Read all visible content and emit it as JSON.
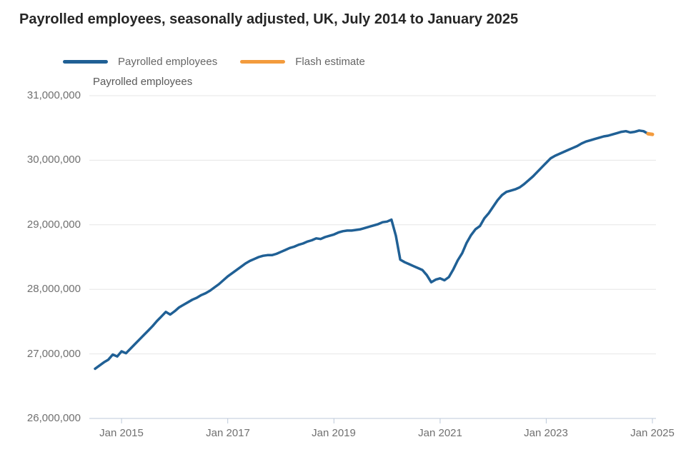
{
  "title": "Payrolled employees, seasonally adjusted, UK, July 2014 to January 2025",
  "legend": [
    {
      "label": "Payrolled employees",
      "color": "#206095"
    },
    {
      "label": "Flash estimate",
      "color": "#f39b3d"
    }
  ],
  "chart_data": {
    "type": "line",
    "title": "Payrolled employees, seasonally adjusted, UK, July 2014 to January 2025",
    "ylabel": "Payrolled employees",
    "xlabel": "",
    "ylim": [
      26000000,
      31000000
    ],
    "grid": "horizontal",
    "legend_position": "top",
    "grid_color": "#e6e6e6",
    "axis_line_color": "#bcc9d9",
    "y_ticks": [
      31000000,
      30000000,
      29000000,
      28000000,
      27000000,
      26000000
    ],
    "y_tick_labels": [
      "31,000,000",
      "30,000,000",
      "29,000,000",
      "28,000,000",
      "27,000,000",
      "26,000,000"
    ],
    "x_tick_labels": [
      "Jan 2015",
      "Jan 2017",
      "Jan 2019",
      "Jan 2021",
      "Jan 2023",
      "Jan 2025"
    ],
    "x_tick_indices": [
      6,
      30,
      54,
      78,
      102,
      126
    ],
    "x_start": "Jul 2014",
    "x_end": "Jan 2025",
    "series": [
      {
        "name": "Payrolled employees",
        "color": "#206095",
        "width": 3.5,
        "start_index": 0,
        "start": "Jul 2014",
        "values": [
          26770000,
          26820000,
          26870000,
          26910000,
          26990000,
          26960000,
          27040000,
          27010000,
          27080000,
          27150000,
          27220000,
          27290000,
          27360000,
          27430000,
          27510000,
          27580000,
          27650000,
          27610000,
          27660000,
          27720000,
          27760000,
          27800000,
          27840000,
          27870000,
          27910000,
          27940000,
          27980000,
          28030000,
          28080000,
          28140000,
          28200000,
          28250000,
          28300000,
          28350000,
          28400000,
          28440000,
          28470000,
          28500000,
          28520000,
          28530000,
          28530000,
          28550000,
          28580000,
          28610000,
          28640000,
          28660000,
          28690000,
          28710000,
          28740000,
          28760000,
          28790000,
          28780000,
          28810000,
          28830000,
          28850000,
          28880000,
          28900000,
          28910000,
          28910000,
          28920000,
          28930000,
          28950000,
          28970000,
          28990000,
          29010000,
          29040000,
          29050000,
          29080000,
          28830000,
          28460000,
          28420000,
          28390000,
          28360000,
          28330000,
          28300000,
          28220000,
          28110000,
          28150000,
          28170000,
          28140000,
          28190000,
          28310000,
          28450000,
          28560000,
          28720000,
          28840000,
          28930000,
          28980000,
          29100000,
          29180000,
          29280000,
          29380000,
          29460000,
          29510000,
          29530000,
          29550000,
          29580000,
          29630000,
          29690000,
          29750000,
          29820000,
          29890000,
          29960000,
          30030000,
          30070000,
          30100000,
          30130000,
          30160000,
          30190000,
          30220000,
          30260000,
          30290000,
          30310000,
          30330000,
          30350000,
          30370000,
          30380000,
          30400000,
          30420000,
          30440000,
          30450000,
          30430000,
          30440000,
          30460000,
          30450000,
          30410000
        ]
      },
      {
        "name": "Flash estimate",
        "color": "#f39b3d",
        "width": 5,
        "start_index": 125,
        "start": "Dec 2024",
        "values": [
          30410000,
          30400000
        ]
      }
    ]
  }
}
